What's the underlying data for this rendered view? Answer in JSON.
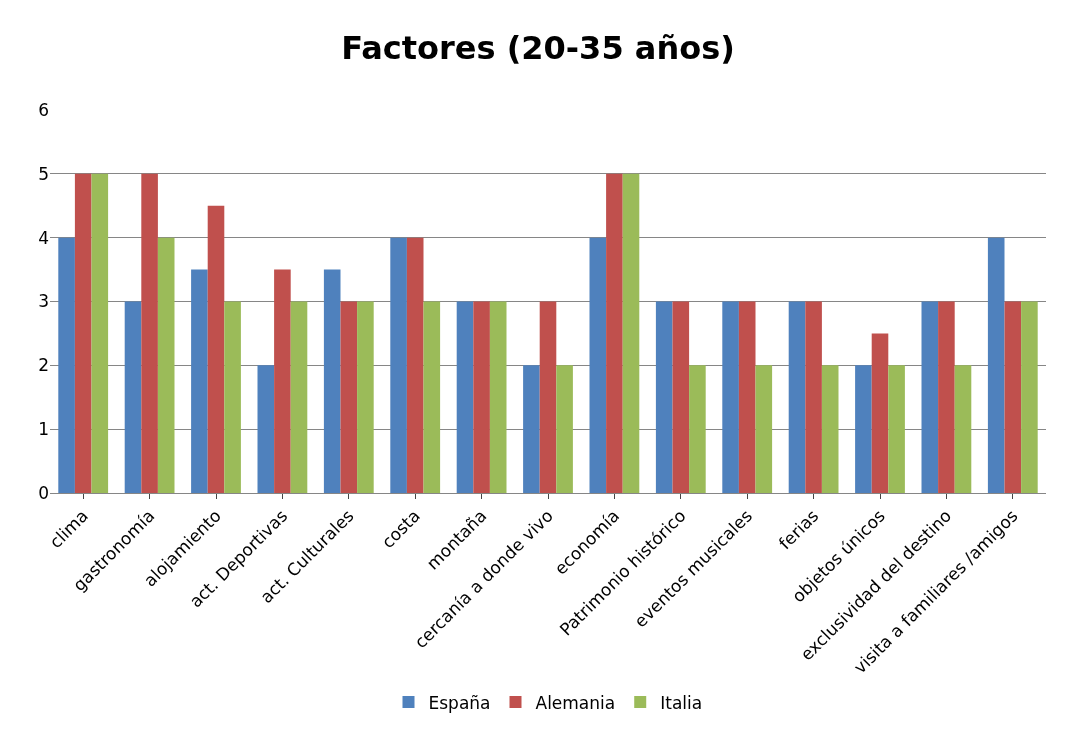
{
  "chart_data": {
    "type": "bar",
    "title": "Factores (20-35 años)",
    "categories": [
      "clima",
      "gastronomía",
      "alojamiento",
      "act. Deportivas",
      "act. Culturales",
      "costa",
      "montaña",
      "cercanía a donde vivo",
      "economía",
      "Patrimonio histórico",
      "eventos musicales",
      "ferias",
      "objetos únicos",
      "exclusividad del destino",
      "visita a familiares /amigos"
    ],
    "series": [
      {
        "name": "España",
        "color": "#4f81bd",
        "values": [
          4,
          3,
          3.5,
          2,
          3.5,
          4,
          3,
          2,
          4,
          3,
          3,
          3,
          2,
          3,
          4
        ]
      },
      {
        "name": "Alemania",
        "color": "#c0504d",
        "values": [
          5,
          5,
          4.5,
          3.5,
          3,
          4,
          3,
          3,
          5,
          3,
          3,
          3,
          2.5,
          3,
          3
        ]
      },
      {
        "name": "Italia",
        "color": "#9bbb59",
        "values": [
          5,
          4,
          3,
          3,
          3,
          3,
          3,
          2,
          5,
          2,
          2,
          2,
          2,
          2,
          3
        ]
      }
    ],
    "ylim": [
      0,
      6
    ],
    "yticks": [
      0,
      1,
      2,
      3,
      4,
      5,
      6
    ],
    "grid": "y",
    "legend": "bottom"
  }
}
